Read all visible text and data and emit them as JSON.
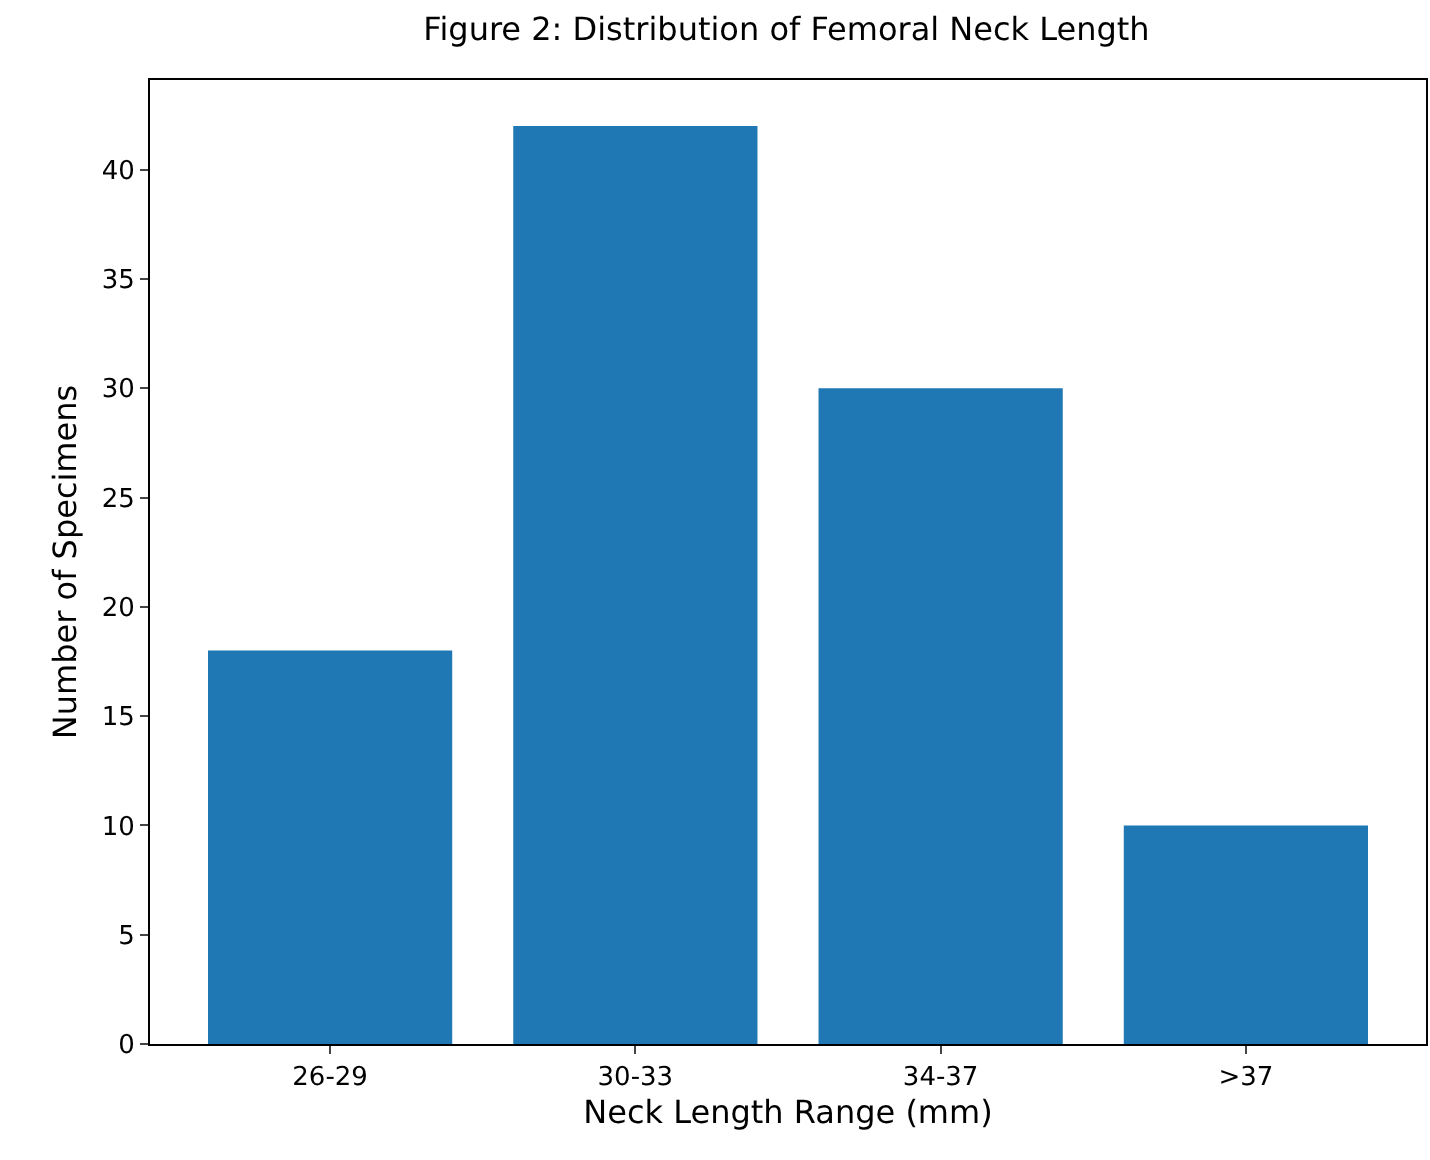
{
  "chart_data": {
    "type": "bar",
    "title": "Figure 2: Distribution of Femoral Neck Length",
    "xlabel": "Neck Length Range (mm)",
    "ylabel": "Number of Specimens",
    "categories": [
      "26-29",
      "30-33",
      "34-37",
      ">37"
    ],
    "values": [
      18,
      42,
      30,
      10
    ],
    "color": "#1f77b4",
    "ylim": [
      0,
      44.1
    ],
    "yticks": [
      0,
      5,
      10,
      15,
      20,
      25,
      30,
      35,
      40
    ]
  }
}
